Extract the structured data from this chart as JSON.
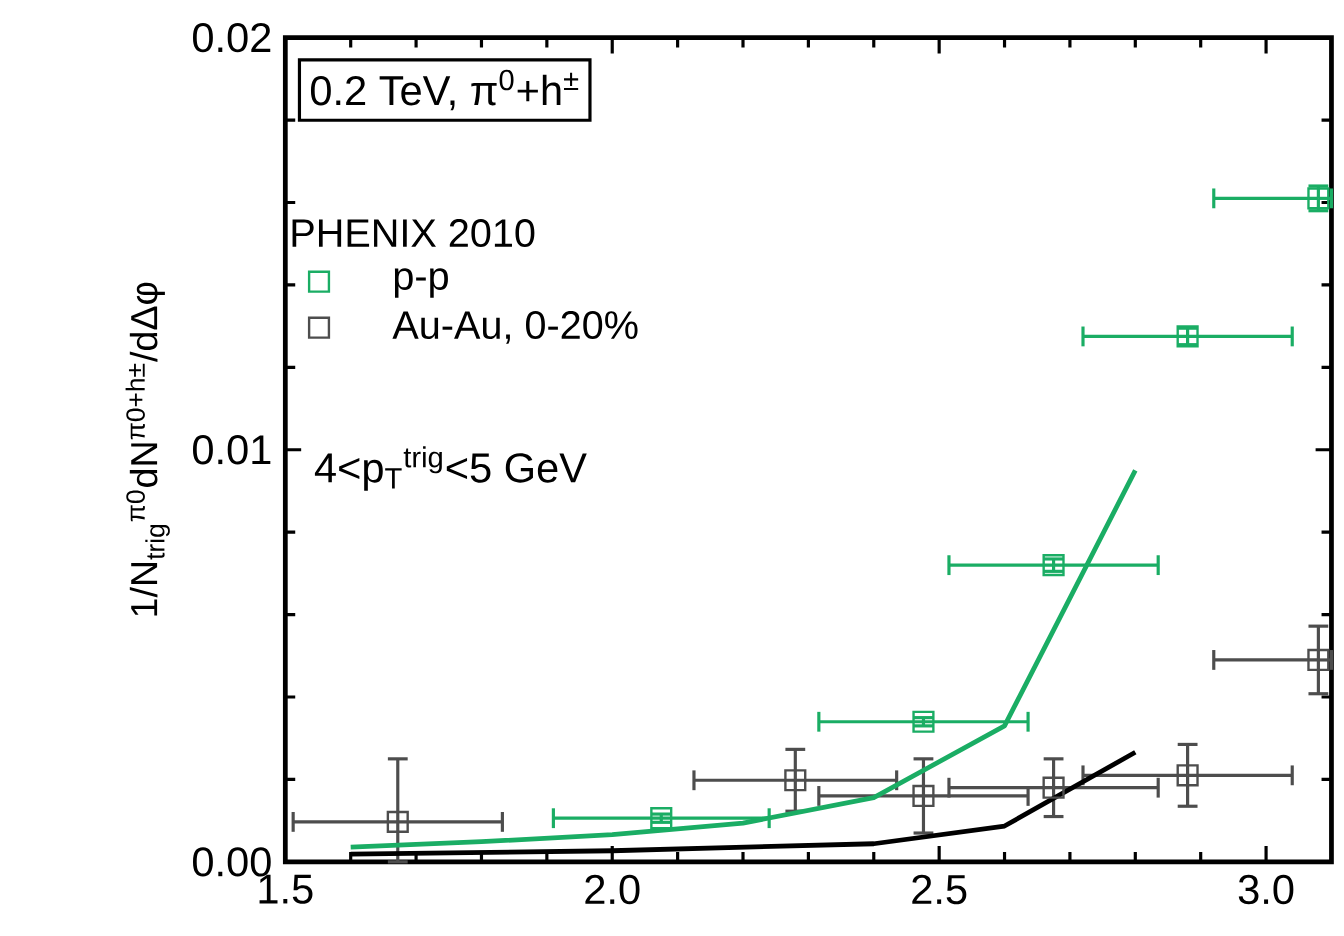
{
  "chart_data": {
    "type": "line",
    "title": "0.2 TeV, π$^{0}$+h$^{±}$",
    "legend_title": "PHENIX 2010",
    "ylabel": "1/N$_{trig}$$^{π0}$dN$^{π0+h±}$/dΔφ",
    "annotations": [
      "4<p$_{T}$$^{trig}$<5 GeV"
    ],
    "series": [
      {
        "name": "p-p",
        "type": "scatter",
        "marker": "square",
        "color": "#1aad64",
        "x": [
          2.075,
          2.476,
          2.675,
          2.88,
          3.08
        ],
        "values": [
          0.00106,
          0.0034,
          0.0072,
          0.01275,
          0.0161
        ],
        "errors": [
          0.0001,
          0.0001,
          0.00015,
          0.0002,
          0.0003
        ],
        "xerrors": [
          0.165,
          0.16,
          0.16,
          0.16,
          [
            2.92,
            3.1
          ]
        ]
      },
      {
        "name": "Au-Au, 0-20%",
        "type": "scatter",
        "marker": "square",
        "color": "#4d4d4d",
        "x": [
          1.672,
          2.28,
          2.476,
          2.675,
          2.88,
          3.08
        ],
        "values": [
          0.00097,
          0.00198,
          0.0016,
          0.0018,
          0.0021,
          0.0049
        ],
        "errors": [
          [
            0.0,
            0.0025
          ],
          0.00075,
          0.0009,
          0.0007,
          0.00075,
          0.00082
        ],
        "xerrors": [
          0.16,
          0.155,
          0.16,
          0.16,
          0.16,
          [
            2.92,
            3.1
          ]
        ]
      },
      {
        "color": "#1aad64",
        "x": [
          1.6,
          1.8,
          2.0,
          2.2,
          2.4,
          2.6,
          2.8
        ],
        "values": [
          0.00036,
          0.00049,
          0.00066,
          0.00094,
          0.00156,
          0.0033,
          0.0095
        ]
      },
      {
        "color": "#000000",
        "x": [
          1.6,
          2.0,
          2.4,
          2.6,
          2.8
        ],
        "values": [
          0.00019,
          0.00027,
          0.00044,
          0.00087,
          0.00266
        ]
      }
    ],
    "xlim": [
      1.5,
      3.1
    ],
    "ylim": [
      0,
      0.02
    ],
    "xticks": [
      {
        "value": 1.5,
        "label": "1.5"
      },
      {
        "value": 2.0,
        "label": "2.0"
      },
      {
        "value": 2.5,
        "label": "2.5"
      },
      {
        "value": 3.0,
        "label": "3.0"
      }
    ],
    "yticks": [
      {
        "value": 0,
        "label": "0.00"
      },
      {
        "value": 0.01,
        "label": "0.01"
      },
      {
        "value": 0.02,
        "label": "0.02"
      }
    ],
    "legend": "top left",
    "grid": false
  }
}
